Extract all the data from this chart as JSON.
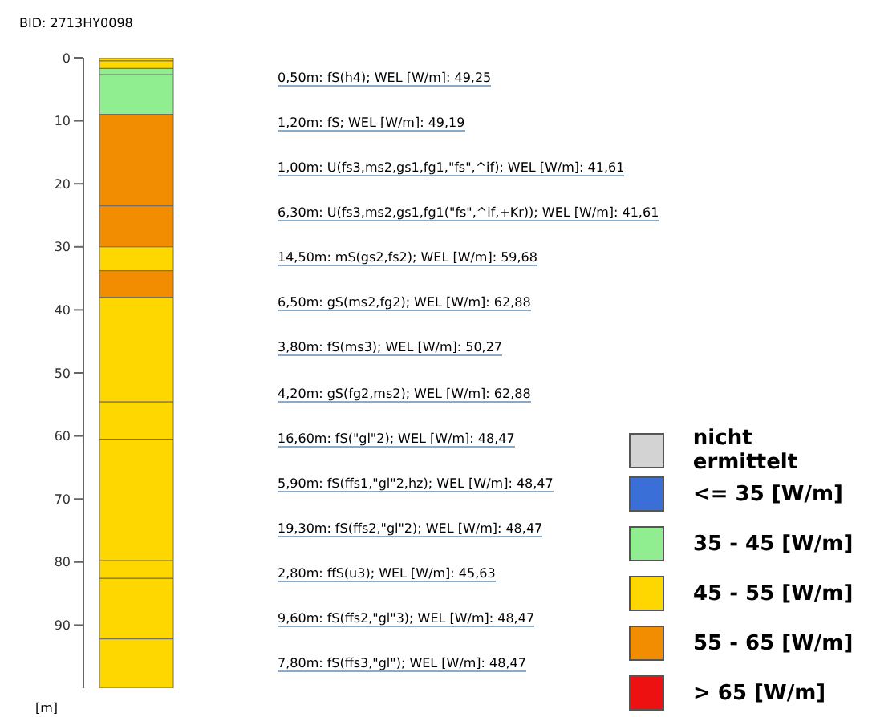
{
  "chart_data": {
    "type": "bar",
    "title": "BID: 2713HY0098",
    "ylabel": "[m]",
    "stacked": true,
    "categories": [
      null
    ],
    "ylim": [
      100,
      0
    ],
    "yticks": [
      0,
      10,
      20,
      30,
      40,
      50,
      60,
      70,
      80,
      90
    ],
    "series": [
      {
        "name": "0,50m: fS(h4); WEL [W/m]: 49,25",
        "color": "#ffd700",
        "values": [
          0.5
        ]
      },
      {
        "name": "1,20m: fS; WEL [W/m]: 49,19",
        "color": "#ffd700",
        "values": [
          1.2
        ]
      },
      {
        "name": "1,00m: U(fs3,ms2,gs1,fg1,\"fs\",^if); WEL [W/m]: 41,61",
        "color": "#90ee90",
        "values": [
          1.0
        ]
      },
      {
        "name": "6,30m: U(fs3,ms2,gs1,fg1(\"fs\",^if,+Kr)); WEL [W/m]: 41,61",
        "color": "#90ee90",
        "values": [
          6.3
        ]
      },
      {
        "name": "14,50m: mS(gs2,fs2); WEL [W/m]: 59,68",
        "color": "#f28c00",
        "values": [
          14.5
        ]
      },
      {
        "name": "6,50m: gS(ms2,fg2); WEL [W/m]: 62,88",
        "color": "#f28c00",
        "values": [
          6.5
        ]
      },
      {
        "name": "3,80m: fS(ms3); WEL [W/m]: 50,27",
        "color": "#ffd700",
        "values": [
          3.8
        ]
      },
      {
        "name": "4,20m: gS(fg2,ms2); WEL [W/m]: 62,88",
        "color": "#f28c00",
        "values": [
          4.2
        ]
      },
      {
        "name": "16,60m: fS(\"gl\"2); WEL [W/m]: 48,47",
        "color": "#ffd700",
        "values": [
          16.6
        ]
      },
      {
        "name": "5,90m: fS(ffs1,\"gl\"2,hz); WEL [W/m]: 48,47",
        "color": "#ffd700",
        "values": [
          5.9
        ]
      },
      {
        "name": "19,30m: fS(ffs2,\"gl\"2); WEL [W/m]: 48,47",
        "color": "#ffd700",
        "values": [
          19.3
        ]
      },
      {
        "name": "2,80m: ffS(u3); WEL [W/m]: 45,63",
        "color": "#ffd700",
        "values": [
          2.8
        ]
      },
      {
        "name": "9,60m: fS(ffs2,\"gl\"3); WEL [W/m]: 48,47",
        "color": "#ffd700",
        "values": [
          9.6
        ]
      },
      {
        "name": "7,80m: fS(ffs3,\"gl\"); WEL [W/m]: 48,47",
        "color": "#ffd700",
        "values": [
          7.8
        ]
      }
    ],
    "annotations": [
      "nicht ermittelt",
      "<= 35 [W/m]",
      "35 - 45 [W/m]",
      "45 - 55 [W/m]",
      "55 - 65 [W/m]",
      "> 65 [W/m]"
    ]
  }
}
